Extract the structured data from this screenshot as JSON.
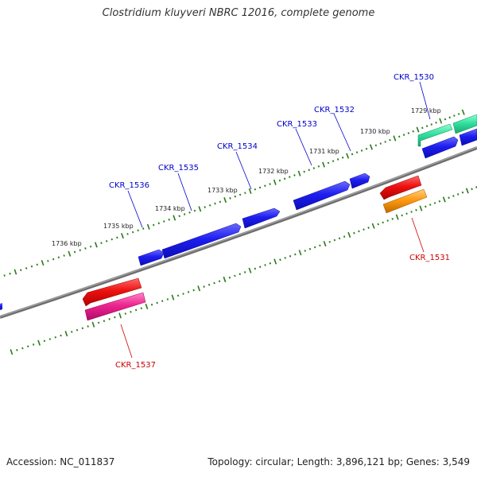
{
  "title": "Clostridium kluyveri NBRC 12016, complete genome",
  "accession_text": "Accession: NC_011837",
  "info_text": "Topology: circular; Length: 3,896,121 bp; Genes: 3,549",
  "kbp_labels": [
    "1729 kbp",
    "1730 kbp",
    "1731 kbp",
    "1732 kbp",
    "1733 kbp",
    "1734 kbp",
    "1735 kbp",
    "1736 kbp"
  ],
  "genes": [
    {
      "id": "CKR_1530",
      "strand": "forward",
      "color": "#1e1ef0"
    },
    {
      "id": "CKR_1531",
      "strand": "reverse",
      "color": "#d01818"
    },
    {
      "id": "CKR_1532",
      "strand": "forward",
      "color": "#1e1ef0"
    },
    {
      "id": "CKR_1533",
      "strand": "forward",
      "color": "#1e1ef0"
    },
    {
      "id": "CKR_1534",
      "strand": "forward",
      "color": "#1e1ef0"
    },
    {
      "id": "CKR_1535",
      "strand": "forward",
      "color": "#1e1ef0"
    },
    {
      "id": "CKR_1536",
      "strand": "forward",
      "color": "#1e1ef0"
    },
    {
      "id": "CKR_1537",
      "strand": "reverse",
      "color": "#d01818"
    }
  ],
  "colors": {
    "backbone": "#808080",
    "ticks": "#2a7a1a",
    "forward_gene": "#1e1ef0",
    "reverse_gene": "#ee1010",
    "rna_teal": "#33e0a0",
    "orange": "#ff9a10",
    "pink": "#ee2590",
    "forward_label": "#0000cc",
    "reverse_label": "#cc0000"
  }
}
